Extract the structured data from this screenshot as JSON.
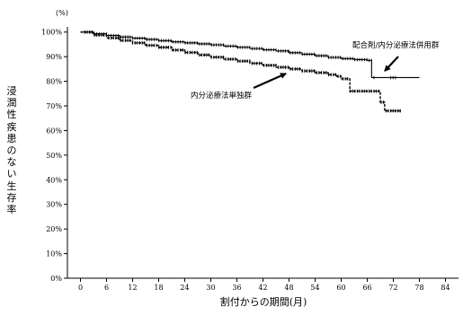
{
  "chart_data": {
    "type": "line",
    "title": "",
    "y_unit": "(%)",
    "xlabel": "割付からの期間(月)",
    "ylabel": "浸潤性疾患のない生存率",
    "x_ticks": [
      0,
      6,
      12,
      18,
      24,
      30,
      36,
      42,
      48,
      54,
      60,
      66,
      72,
      78,
      84
    ],
    "x_tick_labels": [
      "0",
      "6",
      "12",
      "18",
      "24",
      "30",
      "36",
      "42",
      "48",
      "54",
      "60",
      "66",
      "72",
      "78",
      "84"
    ],
    "y_ticks": [
      0,
      10,
      20,
      30,
      40,
      50,
      60,
      70,
      80,
      90,
      100
    ],
    "y_tick_labels": [
      "0%",
      "10%",
      "20%",
      "30%",
      "40%",
      "50%",
      "60%",
      "70%",
      "80%",
      "90%",
      "100%"
    ],
    "xlim": [
      -3,
      87
    ],
    "ylim": [
      0,
      101
    ],
    "grid": false,
    "series": [
      {
        "name": "配合剤/内分泌療法併用群",
        "style": "solid",
        "color": "#000000",
        "x": [
          0,
          3,
          6,
          9,
          12,
          15,
          18,
          21,
          24,
          27,
          30,
          33,
          36,
          39,
          42,
          45,
          48,
          51,
          54,
          57,
          60,
          63,
          66,
          67,
          67,
          72,
          72,
          78
        ],
        "y": [
          100,
          99.3,
          98.6,
          98.0,
          97.5,
          97.0,
          96.5,
          96.0,
          95.6,
          95.2,
          94.8,
          94.3,
          93.8,
          93.3,
          92.8,
          92.3,
          91.6,
          91.0,
          90.4,
          89.7,
          89.2,
          88.8,
          88.5,
          88.4,
          81.5,
          81.5,
          81.5,
          81.5
        ]
      },
      {
        "name": "内分泌療法単独群",
        "style": "dashed",
        "color": "#000000",
        "x": [
          0,
          3,
          6,
          9,
          12,
          15,
          18,
          21,
          24,
          27,
          30,
          33,
          36,
          39,
          42,
          45,
          48,
          51,
          54,
          57,
          59,
          60,
          62,
          62,
          66,
          68,
          69,
          69,
          70,
          70,
          72,
          74
        ],
        "y": [
          100,
          98.8,
          97.6,
          96.6,
          95.6,
          94.6,
          93.8,
          92.7,
          91.7,
          90.7,
          89.8,
          89.0,
          88.2,
          87.3,
          86.5,
          85.7,
          85.0,
          84.2,
          83.5,
          82.7,
          82.0,
          81.0,
          80.0,
          76.0,
          76.0,
          76.0,
          76.0,
          71.5,
          71.5,
          68.0,
          68.0,
          68.0
        ]
      }
    ],
    "annotations": [
      {
        "text": "配合剤/内分泌療法併用群",
        "points_to_series": 0
      },
      {
        "text": "内分泌療法単独群",
        "points_to_series": 1
      }
    ]
  }
}
